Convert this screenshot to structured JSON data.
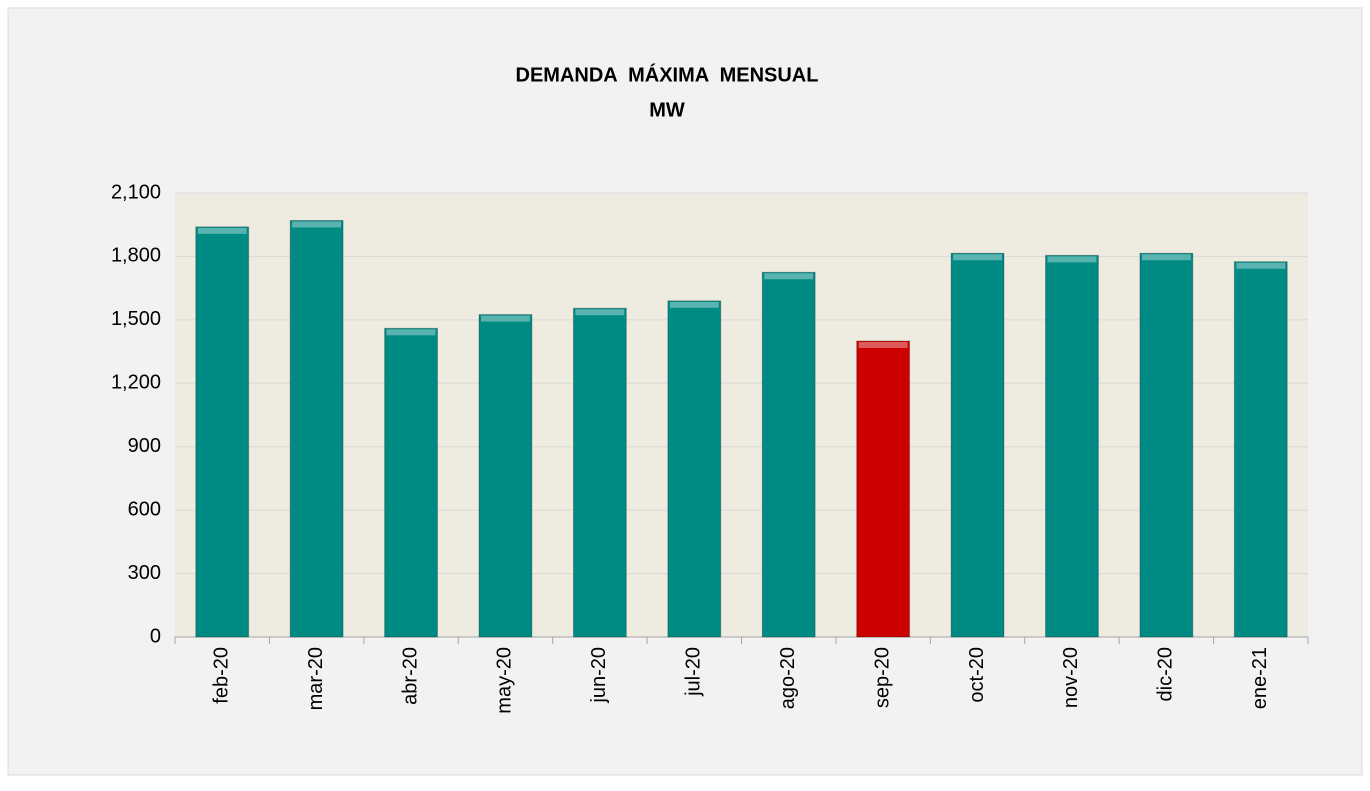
{
  "chart_data": {
    "type": "bar",
    "title": "DEMANDA  MÁXIMA  MENSUAL",
    "subtitle": "MW",
    "categories": [
      "feb-20",
      "mar-20",
      "abr-20",
      "may-20",
      "jun-20",
      "jul-20",
      "ago-20",
      "sep-20",
      "oct-20",
      "nov-20",
      "dic-20",
      "ene-21"
    ],
    "values": [
      1940,
      1970,
      1460,
      1525,
      1555,
      1590,
      1725,
      1400,
      1815,
      1805,
      1815,
      1775
    ],
    "colors": [
      "#008a84",
      "#008a84",
      "#008a84",
      "#008a84",
      "#008a84",
      "#008a84",
      "#008a84",
      "#cc0000",
      "#008a84",
      "#008a84",
      "#008a84",
      "#008a84"
    ],
    "ylim": [
      0,
      2100
    ],
    "yticks": [
      0,
      300,
      600,
      900,
      {
        "value": 1200,
        "label": "1,200"
      },
      {
        "value": 1500,
        "label": "1,500"
      },
      {
        "value": 1800,
        "label": "1,800"
      },
      {
        "value": 2100,
        "label": "2,100"
      }
    ],
    "grid": true
  }
}
